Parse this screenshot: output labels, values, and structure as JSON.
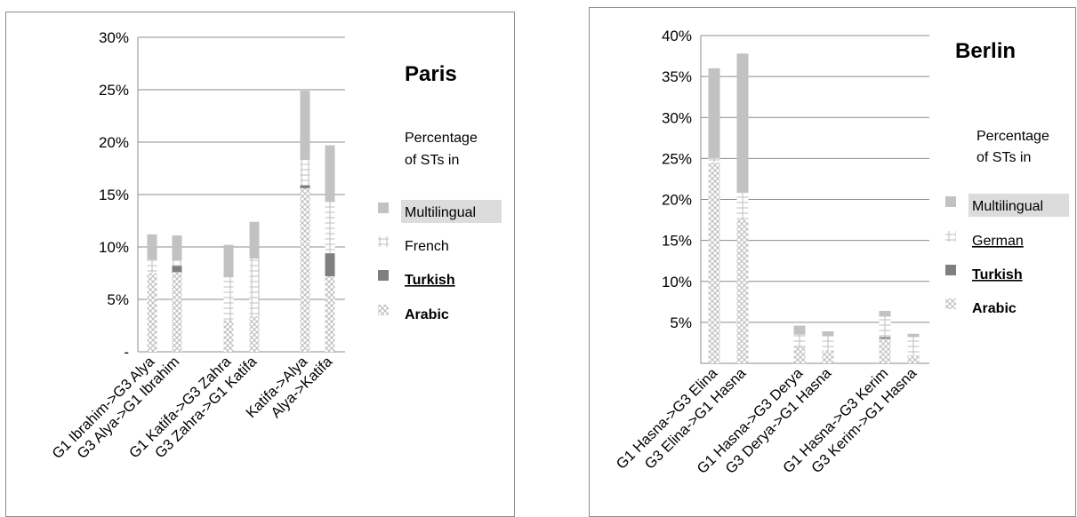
{
  "colors": {
    "multilingual": "#c2c2c2",
    "turkish": "#7f7f7f",
    "hatch": "#bdbdbd",
    "grid": "#8c8c8c"
  },
  "chart_data": [
    {
      "type": "bar",
      "stacked": true,
      "title": "Paris",
      "subtitle": [
        "Percentage",
        "of STs in"
      ],
      "ylim": [
        0,
        30
      ],
      "yticks": [
        0,
        5,
        10,
        15,
        20,
        25,
        30
      ],
      "ytick_labels": [
        "-",
        "5%",
        "10%",
        "15%",
        "20%",
        "25%",
        "30%"
      ],
      "grid": true,
      "legend_position": "right",
      "categories": [
        "G1 Ibrahim->G3 Alya",
        "G3 Alya->G1 Ibrahim",
        "G1 Katifa->G3 Zahra",
        "G3 Zahra->G1 Katifa",
        "Katifa->Alya",
        "Alya->Katifa"
      ],
      "series": [
        {
          "name": "Arabic",
          "pattern": "crosshatch",
          "values": [
            7.5,
            7.6,
            3.0,
            3.4,
            15.6,
            7.2
          ]
        },
        {
          "name": "Turkish",
          "pattern": "solid-dark",
          "values": [
            0,
            0.6,
            0,
            0,
            0.3,
            2.2
          ]
        },
        {
          "name": "French",
          "pattern": "plus",
          "values": [
            1.3,
            0.5,
            4.1,
            5.5,
            2.4,
            4.9
          ]
        },
        {
          "name": "Multilingual",
          "pattern": "solid-light",
          "values": [
            2.4,
            2.4,
            3.1,
            3.5,
            6.6,
            5.4
          ]
        }
      ],
      "legend": [
        {
          "label": "Multilingual",
          "style": "highlight"
        },
        {
          "label": "French",
          "style": "plain"
        },
        {
          "label": "Turkish",
          "style": "bold-underline"
        },
        {
          "label": "Arabic",
          "style": "bold"
        }
      ]
    },
    {
      "type": "bar",
      "stacked": true,
      "title": "Berlin",
      "subtitle": [
        "Percentage",
        "of STs in"
      ],
      "ylim": [
        0,
        40
      ],
      "yticks": [
        5,
        10,
        15,
        20,
        25,
        30,
        35,
        40
      ],
      "ytick_labels": [
        "5%",
        "10%",
        "15%",
        "20%",
        "25%",
        "30%",
        "35%",
        "40%"
      ],
      "grid": true,
      "legend_position": "right",
      "categories": [
        "G1 Hasna->G3 Elina",
        "G3 Elina->G1 Hasna",
        "G1 Hasna->G3 Derya",
        "G3 Derya->G1 Hasna",
        "G1 Hasna->G3 Kerim",
        "G3 Kerim->G1 Hasna"
      ],
      "series": [
        {
          "name": "Arabic",
          "pattern": "crosshatch",
          "values": [
            24.5,
            17.5,
            2.0,
            1.6,
            3.0,
            1.0
          ]
        },
        {
          "name": "Turkish",
          "pattern": "solid-dark",
          "values": [
            0,
            0,
            0,
            0,
            0.2,
            0
          ]
        },
        {
          "name": "German",
          "pattern": "plus",
          "values": [
            0.5,
            3.3,
            1.5,
            1.7,
            2.5,
            2.2
          ]
        },
        {
          "name": "Multilingual",
          "pattern": "solid-light",
          "values": [
            11.0,
            17.0,
            1.1,
            0.6,
            0.7,
            0.4
          ]
        }
      ],
      "legend": [
        {
          "label": "Multilingual",
          "style": "highlight"
        },
        {
          "label": "German",
          "style": "underline"
        },
        {
          "label": "Turkish",
          "style": "bold-underline"
        },
        {
          "label": "Arabic",
          "style": "bold"
        }
      ]
    }
  ]
}
